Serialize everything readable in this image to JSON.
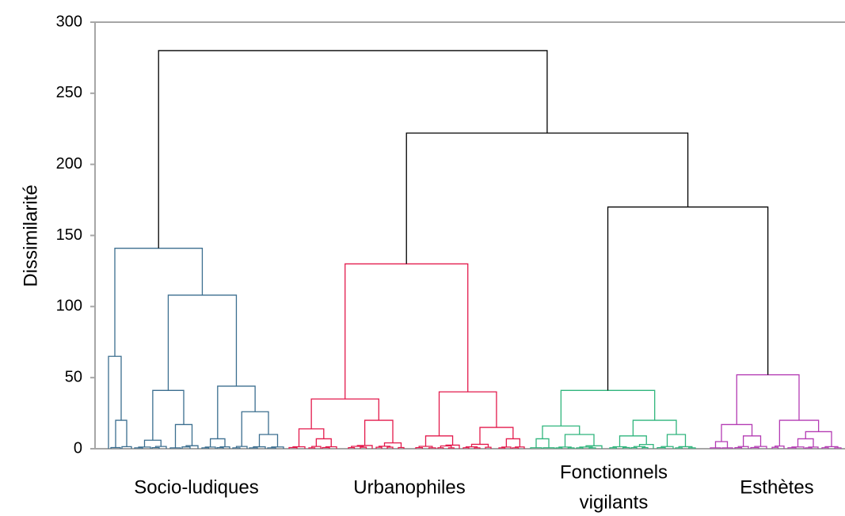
{
  "chart_data": {
    "type": "dendrogram",
    "ylabel": "Dissimilarité",
    "ylim": [
      0,
      300
    ],
    "yticks": [
      0,
      50,
      100,
      150,
      200,
      250,
      300
    ],
    "grid": false,
    "clusters": [
      {
        "name": "Socio-ludiques",
        "label_lines": [
          "Socio-ludiques"
        ],
        "color": "#3b6e8f"
      },
      {
        "name": "Urbanophiles",
        "label_lines": [
          "Urbanophiles"
        ],
        "color": "#e31a4c"
      },
      {
        "name": "Fonctionnels vigilants",
        "label_lines": [
          "Fonctionnels",
          "vigilants"
        ],
        "color": "#2fb57c"
      },
      {
        "name": "Esthètes",
        "label_lines": [
          "Esthètes"
        ],
        "color": "#b43bb3"
      }
    ],
    "merge_heights": {
      "root": 280,
      "urbanophiles_fonctionnels_esthetes": 222,
      "fonctionnels_esthetes": 170,
      "socio_ludiques": 141,
      "urbanophiles": 130,
      "esthetes": 52,
      "fonctionnels_vigilants": 41
    },
    "link_color": "#000000"
  }
}
